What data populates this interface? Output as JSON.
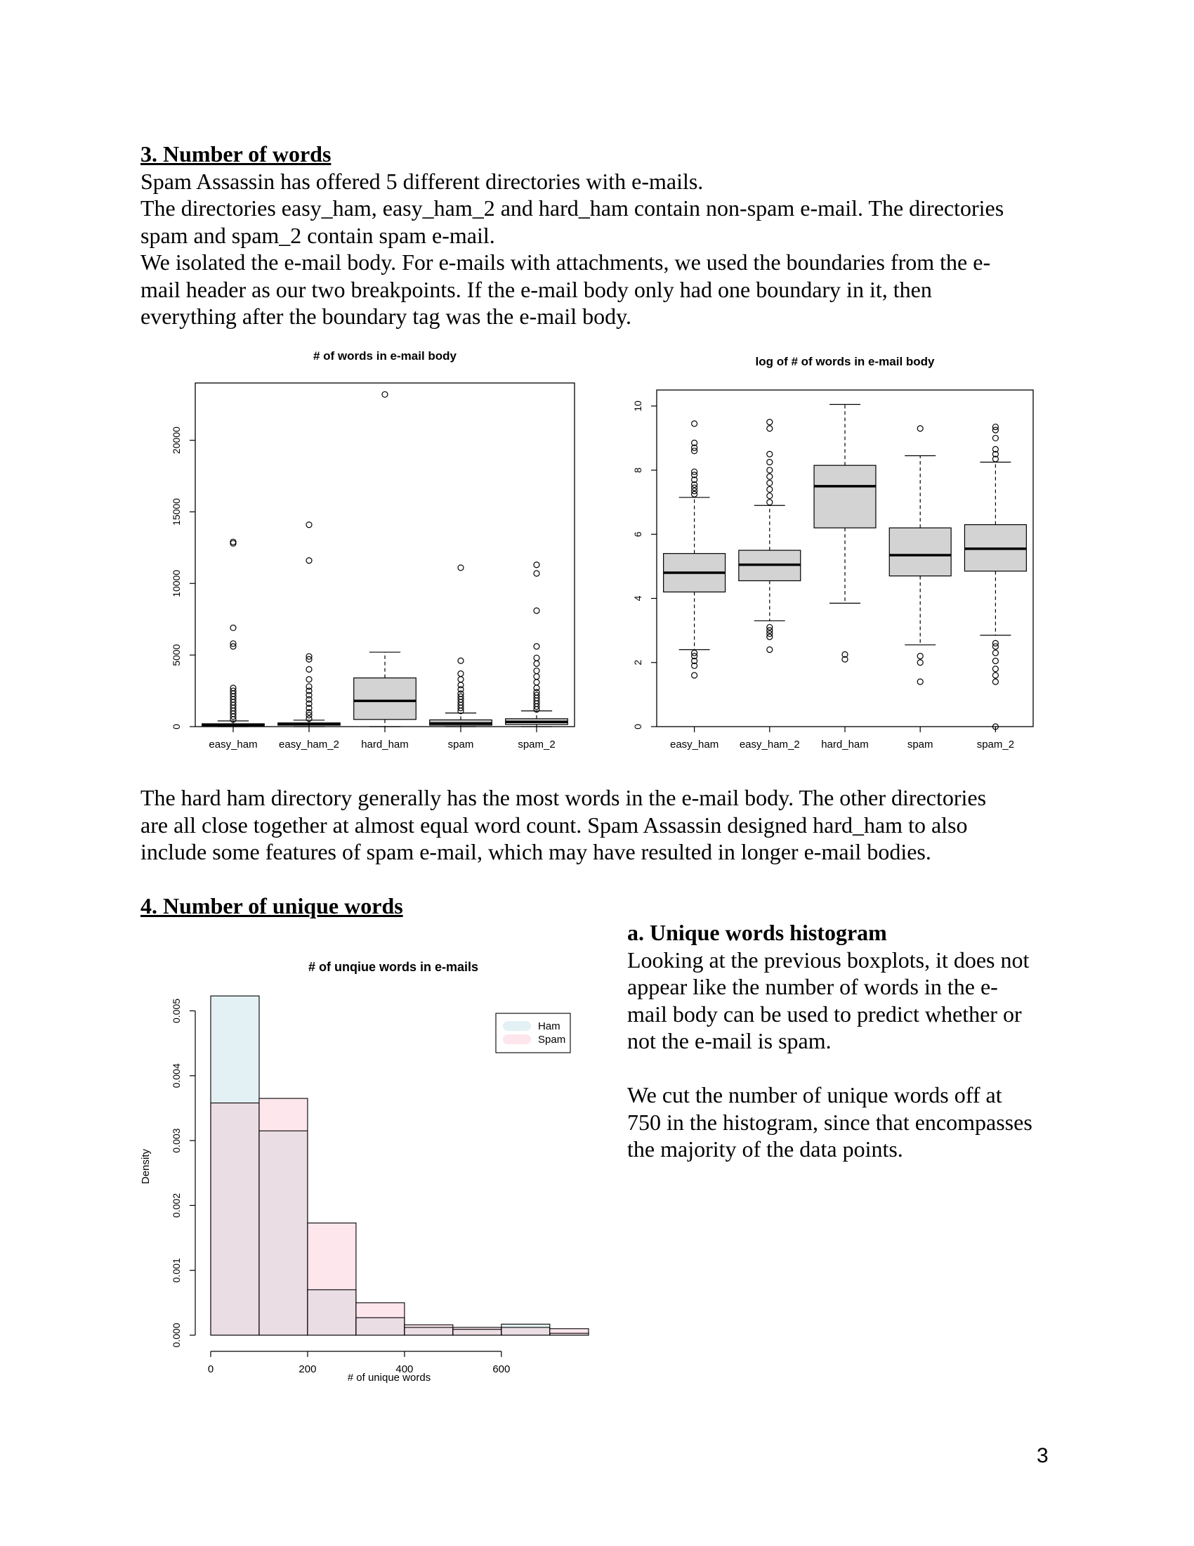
{
  "section3": {
    "heading": "3. Number of words",
    "p1": "Spam Assassin has offered 5 different directories with e-mails.",
    "p2_line1": "The directories easy_ham, easy_ham_2 and hard_ham contain non-spam e-mail. The directories",
    "p2_line2": "spam and spam_2 contain spam e-mail.",
    "p3_line1": "We isolated the e-mail body. For e-mails with attachments, we used the boundaries from the e-",
    "p3_line2": "mail header as our two breakpoints. If the e-mail body only had one boundary in it, then",
    "p3_line3": "everything after the boundary tag was the e-mail body."
  },
  "analysis": {
    "line1": "The hard ham directory generally has the most words in the e-mail body. The other directories",
    "line2": "are all close together at almost equal word count. Spam Assassin designed hard_ham to also",
    "line3": "include some features of spam e-mail, which may have resulted in longer e-mail bodies."
  },
  "section4": {
    "heading": "4. Number of unique words",
    "subheading": "a. Unique words histogram",
    "p1_line1": "Looking at the previous boxplots, it does not",
    "p1_line2": "appear like the number of words in the e-",
    "p1_line3": "mail body can be used to predict whether or",
    "p1_line4": "not the e-mail is spam.",
    "p2_line1": "We cut the number of unique words off at",
    "p2_line2": "750 in the histogram, since that encompasses",
    "p2_line3": "the majority of the data points."
  },
  "page_number": "3",
  "colors": {
    "box_fill": "#d3d3d3",
    "ham": "#e3f1f5",
    "spam": "#fde6ec",
    "overlap": "#ebdde4"
  },
  "chart_data": [
    {
      "type": "boxplot",
      "title": "# of words in e-mail body",
      "categories": [
        "easy_ham",
        "easy_ham_2",
        "hard_ham",
        "spam",
        "spam_2"
      ],
      "ylim": [
        0,
        24000
      ],
      "yticks": [
        0,
        5000,
        10000,
        15000,
        20000
      ],
      "boxes": [
        {
          "min": 0,
          "q1": 60,
          "median": 120,
          "q3": 200,
          "max": 400,
          "outliers": [
            500,
            700,
            900,
            1100,
            1300,
            1500,
            1700,
            1900,
            2100,
            2300,
            2500,
            2700,
            5600,
            5800,
            6900,
            12800,
            12900
          ]
        },
        {
          "min": 0,
          "q1": 100,
          "median": 170,
          "q3": 260,
          "max": 450,
          "outliers": [
            550,
            800,
            1000,
            1300,
            1600,
            1900,
            2200,
            2500,
            2800,
            3300,
            4000,
            4700,
            4900,
            11600,
            14100
          ]
        },
        {
          "min": 0,
          "q1": 500,
          "median": 1800,
          "q3": 3400,
          "max": 5200,
          "outliers": [
            23200
          ]
        },
        {
          "min": 0,
          "q1": 100,
          "median": 230,
          "q3": 470,
          "max": 950,
          "outliers": [
            1100,
            1300,
            1500,
            1700,
            1900,
            2100,
            2300,
            2600,
            2900,
            3300,
            3700,
            4600,
            11100
          ]
        },
        {
          "min": 0,
          "q1": 150,
          "median": 330,
          "q3": 550,
          "max": 1100,
          "outliers": [
            1200,
            1400,
            1600,
            1800,
            2000,
            2200,
            2400,
            2700,
            3100,
            3500,
            3900,
            4400,
            4800,
            5600,
            8100,
            10700,
            11300
          ]
        }
      ]
    },
    {
      "type": "boxplot",
      "title": "log of # of words in e-mail body",
      "categories": [
        "easy_ham",
        "easy_ham_2",
        "hard_ham",
        "spam",
        "spam_2"
      ],
      "ylim": [
        0,
        10.5
      ],
      "yticks": [
        0,
        2,
        4,
        6,
        8,
        10
      ],
      "boxes": [
        {
          "min": 2.4,
          "q1": 4.2,
          "median": 4.8,
          "q3": 5.4,
          "max": 7.15,
          "outliers": [
            1.6,
            1.9,
            2.05,
            2.2,
            2.3,
            7.25,
            7.35,
            7.45,
            7.55,
            7.7,
            7.85,
            7.95,
            8.6,
            8.7,
            8.85,
            9.45
          ]
        },
        {
          "min": 3.3,
          "q1": 4.55,
          "median": 5.05,
          "q3": 5.5,
          "max": 6.9,
          "outliers": [
            2.4,
            2.8,
            2.9,
            3.0,
            3.1,
            7.0,
            7.2,
            7.4,
            7.6,
            7.8,
            8.0,
            8.25,
            8.5,
            9.3,
            9.5
          ]
        },
        {
          "min": 3.85,
          "q1": 6.2,
          "median": 7.5,
          "q3": 8.15,
          "max": 10.05,
          "outliers": [
            2.1,
            2.25
          ]
        },
        {
          "min": 2.55,
          "q1": 4.7,
          "median": 5.35,
          "q3": 6.2,
          "max": 8.45,
          "outliers": [
            1.4,
            2.0,
            2.2,
            9.3
          ]
        },
        {
          "min": 2.85,
          "q1": 4.85,
          "median": 5.55,
          "q3": 6.3,
          "max": 8.25,
          "outliers": [
            0.0,
            1.4,
            1.6,
            1.8,
            2.05,
            2.3,
            2.5,
            2.6,
            8.35,
            8.5,
            8.65,
            9.0,
            9.25,
            9.35
          ]
        }
      ]
    },
    {
      "type": "histogram",
      "title": "# of unqiue words in e-mails",
      "xlabel": "# of unique words",
      "ylabel": "Density",
      "xlim": [
        0,
        780
      ],
      "ylim": [
        0,
        0.0052
      ],
      "xticks": [
        0,
        200,
        400,
        600
      ],
      "yticks": [
        0,
        0.001,
        0.002,
        0.003,
        0.004,
        0.005
      ],
      "ytick_labels": [
        "0.000",
        "0.001",
        "0.002",
        "0.003",
        "0.004",
        "0.005"
      ],
      "bins": [
        0,
        100,
        200,
        300,
        400,
        500,
        600,
        700,
        800
      ],
      "series": [
        {
          "name": "Ham",
          "values": [
            0.00523,
            0.00315,
            0.0007,
            0.00027,
            0.00012,
            9e-05,
            0.00017,
            3e-05
          ]
        },
        {
          "name": "Spam",
          "values": [
            0.00358,
            0.00365,
            0.00173,
            0.0005,
            0.00016,
            0.00012,
            0.00012,
            0.0001
          ]
        }
      ],
      "legend": "top-right"
    }
  ]
}
